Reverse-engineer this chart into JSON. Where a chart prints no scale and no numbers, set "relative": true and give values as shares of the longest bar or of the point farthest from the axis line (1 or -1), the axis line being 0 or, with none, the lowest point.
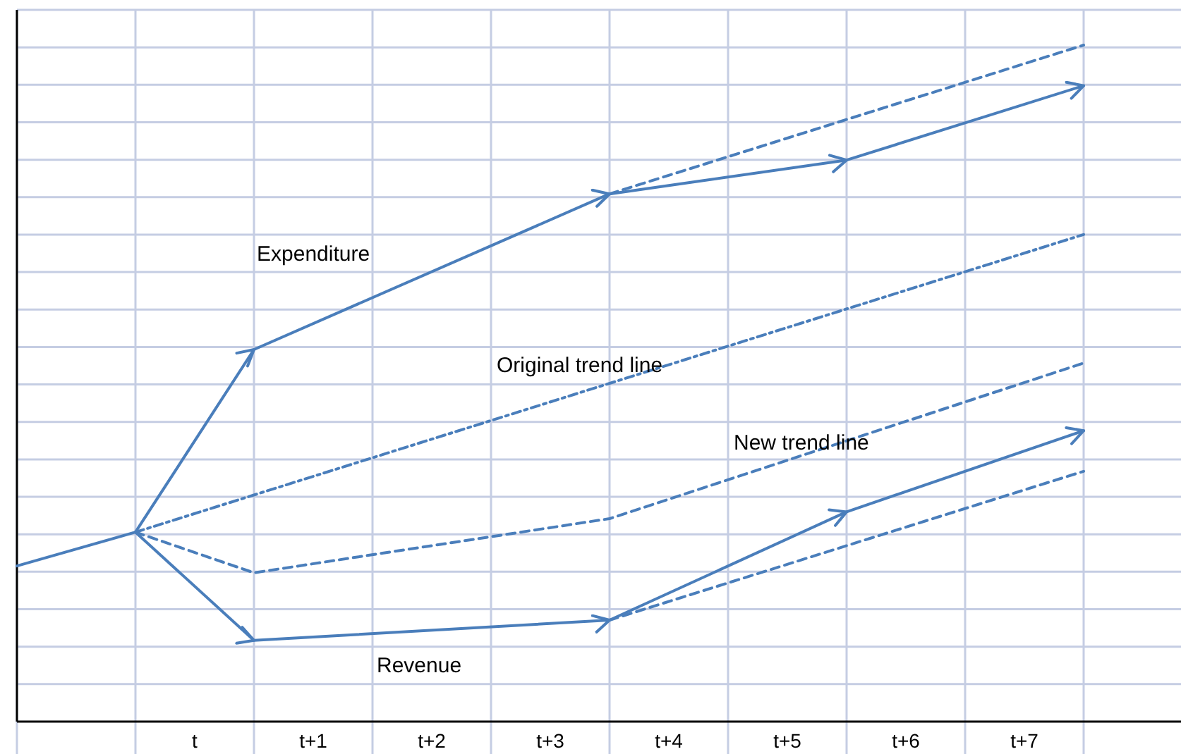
{
  "chart_data": {
    "type": "line",
    "relative": true,
    "grid": true,
    "categories": [
      null,
      null,
      null,
      "t",
      null,
      "t+1",
      null,
      "t+2",
      null,
      "t+3",
      null,
      "t+4",
      null,
      "t+5",
      null,
      "t+6",
      null,
      "t+7",
      null
    ],
    "series": [
      {
        "color": "#4a7ebb",
        "line_style": "solid",
        "values": [
          0.23,
          null,
          0.28,
          null,
          null,
          null,
          null,
          null,
          null,
          null,
          null,
          null,
          null,
          null,
          null,
          null,
          null,
          null,
          null
        ]
      },
      {
        "name": "Expenditure",
        "color": "#4a7ebb",
        "line_style": "solid",
        "values": [
          null,
          null,
          0.28,
          null,
          0.55,
          null,
          null,
          null,
          null,
          null,
          0.78,
          null,
          null,
          null,
          0.83,
          null,
          null,
          null,
          0.94
        ]
      },
      {
        "color": "#4a7ebb",
        "line_style": "dashed",
        "values": [
          null,
          null,
          null,
          null,
          null,
          null,
          null,
          null,
          null,
          null,
          0.78,
          null,
          null,
          null,
          null,
          null,
          null,
          null,
          1.0
        ]
      },
      {
        "name": "Original trend line",
        "color": "#4a7ebb",
        "line_style": "dashdot",
        "values": [
          null,
          null,
          0.28,
          null,
          null,
          null,
          null,
          null,
          null,
          null,
          null,
          null,
          null,
          null,
          null,
          null,
          null,
          null,
          0.72
        ]
      },
      {
        "name": "New trend line",
        "color": "#4a7ebb",
        "line_style": "dashed",
        "values": [
          null,
          null,
          0.28,
          null,
          0.22,
          null,
          null,
          null,
          null,
          null,
          0.3,
          null,
          null,
          null,
          null,
          null,
          null,
          null,
          0.53
        ]
      },
      {
        "name": "Revenue",
        "color": "#4a7ebb",
        "line_style": "solid",
        "values": [
          null,
          null,
          0.28,
          null,
          0.12,
          null,
          null,
          null,
          null,
          null,
          0.15,
          null,
          null,
          null,
          0.31,
          null,
          null,
          null,
          0.43
        ]
      },
      {
        "color": "#4a7ebb",
        "line_style": "dashed",
        "values": [
          null,
          null,
          null,
          null,
          null,
          null,
          null,
          null,
          null,
          null,
          0.15,
          null,
          null,
          null,
          null,
          null,
          null,
          null,
          0.37
        ]
      }
    ]
  }
}
